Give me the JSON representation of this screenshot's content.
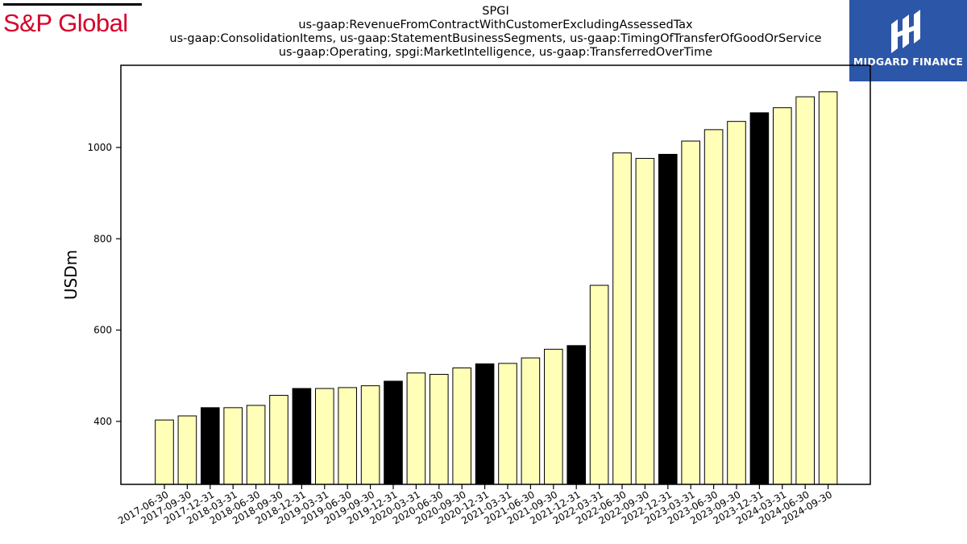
{
  "branding": {
    "left_logo_text": "S&P Global",
    "left_logo_color": "#d6002a",
    "right_logo_text": "MIDGARD FINANCE",
    "right_logo_bg": "#2c56a8"
  },
  "chart_data": {
    "type": "bar",
    "title_lines": [
      "SPGI",
      "us-gaap:RevenueFromContractWithCustomerExcludingAssessedTax",
      "us-gaap:ConsolidationItems, us-gaap:StatementBusinessSegments, us-gaap:TimingOfTransferOfGoodOrService",
      "us-gaap:Operating, spgi:MarketIntelligence, us-gaap:TransferredOverTime"
    ],
    "ylabel": "USDm",
    "xlabel": "",
    "ylim": [
      262,
      1180
    ],
    "yticks": [
      400,
      600,
      800,
      1000
    ],
    "grid": false,
    "bar_color": "#ffffb8",
    "highlight_color": "#000000",
    "categories": [
      "2017-06-30",
      "2017-09-30",
      "2017-12-31",
      "2018-03-31",
      "2018-06-30",
      "2018-09-30",
      "2018-12-31",
      "2019-03-31",
      "2019-06-30",
      "2019-09-30",
      "2019-12-31",
      "2020-03-31",
      "2020-06-30",
      "2020-09-30",
      "2020-12-31",
      "2021-03-31",
      "2021-06-30",
      "2021-09-30",
      "2021-12-31",
      "2022-03-31",
      "2022-06-30",
      "2022-09-30",
      "2022-12-31",
      "2023-03-31",
      "2023-06-30",
      "2023-09-30",
      "2023-12-31",
      "2024-03-31",
      "2024-06-30",
      "2024-09-30"
    ],
    "values": [
      403,
      412,
      430,
      430,
      435,
      457,
      472,
      472,
      474,
      478,
      488,
      506,
      503,
      517,
      526,
      527,
      539,
      558,
      566,
      698,
      988,
      976,
      985,
      1014,
      1039,
      1057,
      1076,
      1087,
      1111,
      1122
    ],
    "highlighted": [
      false,
      false,
      true,
      false,
      false,
      false,
      true,
      false,
      false,
      false,
      true,
      false,
      false,
      false,
      true,
      false,
      false,
      false,
      true,
      false,
      false,
      false,
      true,
      false,
      false,
      false,
      true,
      false,
      false,
      false
    ]
  }
}
